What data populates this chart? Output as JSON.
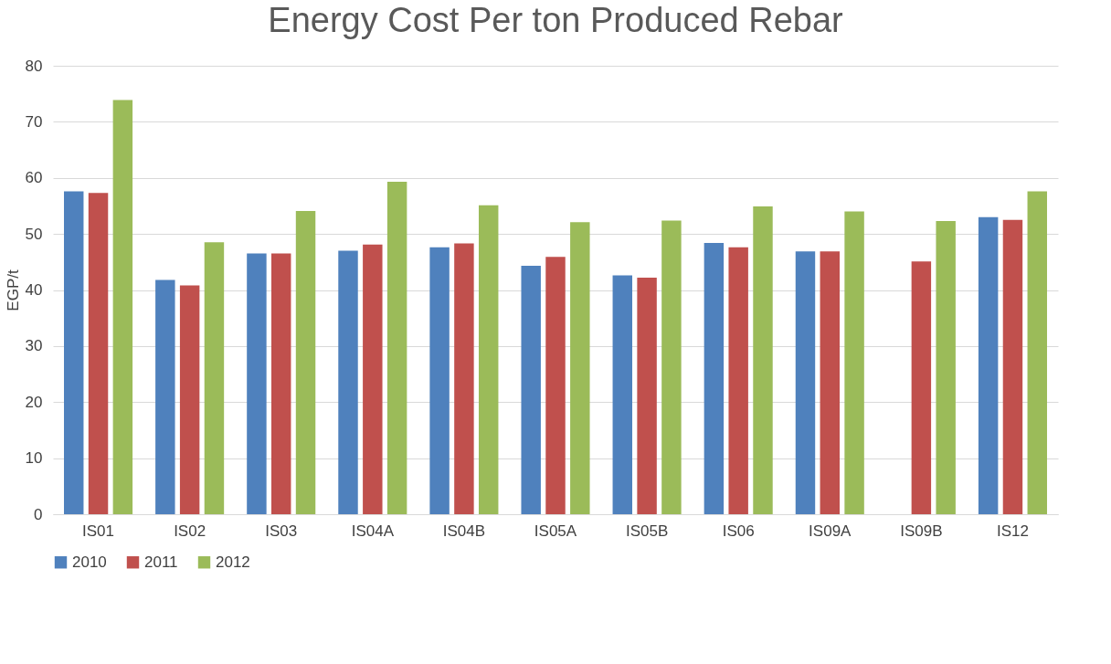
{
  "chart_data": {
    "type": "bar",
    "title": "Energy Cost Per ton Produced Rebar",
    "ylabel": "EGP/t",
    "categories": [
      "IS01",
      "IS02",
      "IS03",
      "IS04A",
      "IS04B",
      "IS05A",
      "IS05B",
      "IS06",
      "IS09A",
      "IS09B",
      "IS12"
    ],
    "series": [
      {
        "name": "2010",
        "color": "#4f81bd",
        "values": [
          57.6,
          41.8,
          46.5,
          47.0,
          47.6,
          44.3,
          42.6,
          48.4,
          46.9,
          null,
          53.0
        ]
      },
      {
        "name": "2011",
        "color": "#c0504d",
        "values": [
          57.3,
          40.8,
          46.5,
          48.1,
          48.3,
          45.9,
          42.2,
          47.6,
          46.9,
          45.1,
          52.5
        ]
      },
      {
        "name": "2012",
        "color": "#9bbb59",
        "values": [
          73.9,
          48.5,
          54.1,
          59.3,
          55.1,
          52.1,
          52.4,
          54.9,
          54.0,
          52.3,
          57.6
        ]
      }
    ],
    "ylim": [
      0,
      80
    ],
    "yticks": [
      0,
      10,
      20,
      30,
      40,
      50,
      60,
      70,
      80
    ],
    "grid": "y",
    "legend": "bottom"
  }
}
